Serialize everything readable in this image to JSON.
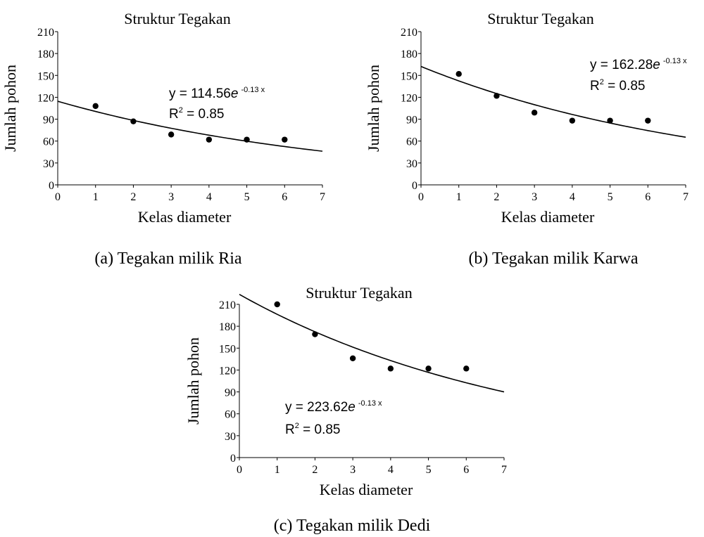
{
  "colors": {
    "ink": "#000000",
    "background": "#ffffff"
  },
  "chart_data": [
    {
      "type": "scatter",
      "title": "Struktur Tegakan",
      "xlabel": "Kelas diameter",
      "ylabel": "Jumlah pohon",
      "caption": "(a) Tegakan milik Ria",
      "xlim": [
        0,
        7
      ],
      "ylim": [
        0,
        210
      ],
      "xticks": [
        "0",
        "1",
        "2",
        "3",
        "4",
        "5",
        "6",
        "7"
      ],
      "yticks": [
        "0",
        "30",
        "60",
        "90",
        "120",
        "150",
        "180",
        "210"
      ],
      "series": [
        {
          "x": [
            1,
            2,
            3,
            4,
            5,
            6
          ],
          "y": [
            108,
            87,
            69,
            62,
            62,
            62
          ]
        }
      ],
      "trendline": {
        "type": "exponential",
        "a": 114.56,
        "b": -0.13,
        "equation_prefix": "y = 114.56",
        "equation_base": "e",
        "equation_exponent": "-0.13 x",
        "r2_prefix": "R",
        "r2_sup": "2",
        "r2_value": " = 0.85"
      }
    },
    {
      "type": "scatter",
      "title": "Struktur Tegakan",
      "xlabel": "Kelas diameter",
      "ylabel": "Jumlah pohon",
      "caption": "(b) Tegakan milik Karwa",
      "xlim": [
        0,
        7
      ],
      "ylim": [
        0,
        210
      ],
      "xticks": [
        "0",
        "1",
        "2",
        "3",
        "4",
        "5",
        "6",
        "7"
      ],
      "yticks": [
        "0",
        "30",
        "60",
        "90",
        "120",
        "150",
        "180",
        "210"
      ],
      "series": [
        {
          "x": [
            1,
            2,
            3,
            4,
            5,
            6
          ],
          "y": [
            152,
            122,
            99,
            88,
            88,
            88
          ]
        }
      ],
      "trendline": {
        "type": "exponential",
        "a": 162.28,
        "b": -0.13,
        "equation_prefix": "y = 162.28",
        "equation_base": "e",
        "equation_exponent": "-0.13 x",
        "r2_prefix": "R",
        "r2_sup": "2",
        "r2_value": " = 0.85"
      }
    },
    {
      "type": "scatter",
      "title": "Struktur Tegakan",
      "xlabel": "Kelas diameter",
      "ylabel": "Jumlah pohon",
      "caption": "(c) Tegakan milik Dedi",
      "xlim": [
        0,
        7
      ],
      "ylim": [
        0,
        210
      ],
      "xticks": [
        "0",
        "1",
        "2",
        "3",
        "4",
        "5",
        "6",
        "7"
      ],
      "yticks": [
        "0",
        "30",
        "60",
        "90",
        "120",
        "150",
        "180",
        "210"
      ],
      "series": [
        {
          "x": [
            1,
            2,
            3,
            4,
            5,
            6
          ],
          "y": [
            210,
            169,
            136,
            122,
            122,
            122
          ]
        }
      ],
      "trendline": {
        "type": "exponential",
        "a": 223.62,
        "b": -0.13,
        "equation_prefix": "y = 223.62",
        "equation_base": "e",
        "equation_exponent": "-0.13 x",
        "r2_prefix": "R",
        "r2_sup": "2",
        "r2_value": " = 0.85"
      }
    }
  ]
}
